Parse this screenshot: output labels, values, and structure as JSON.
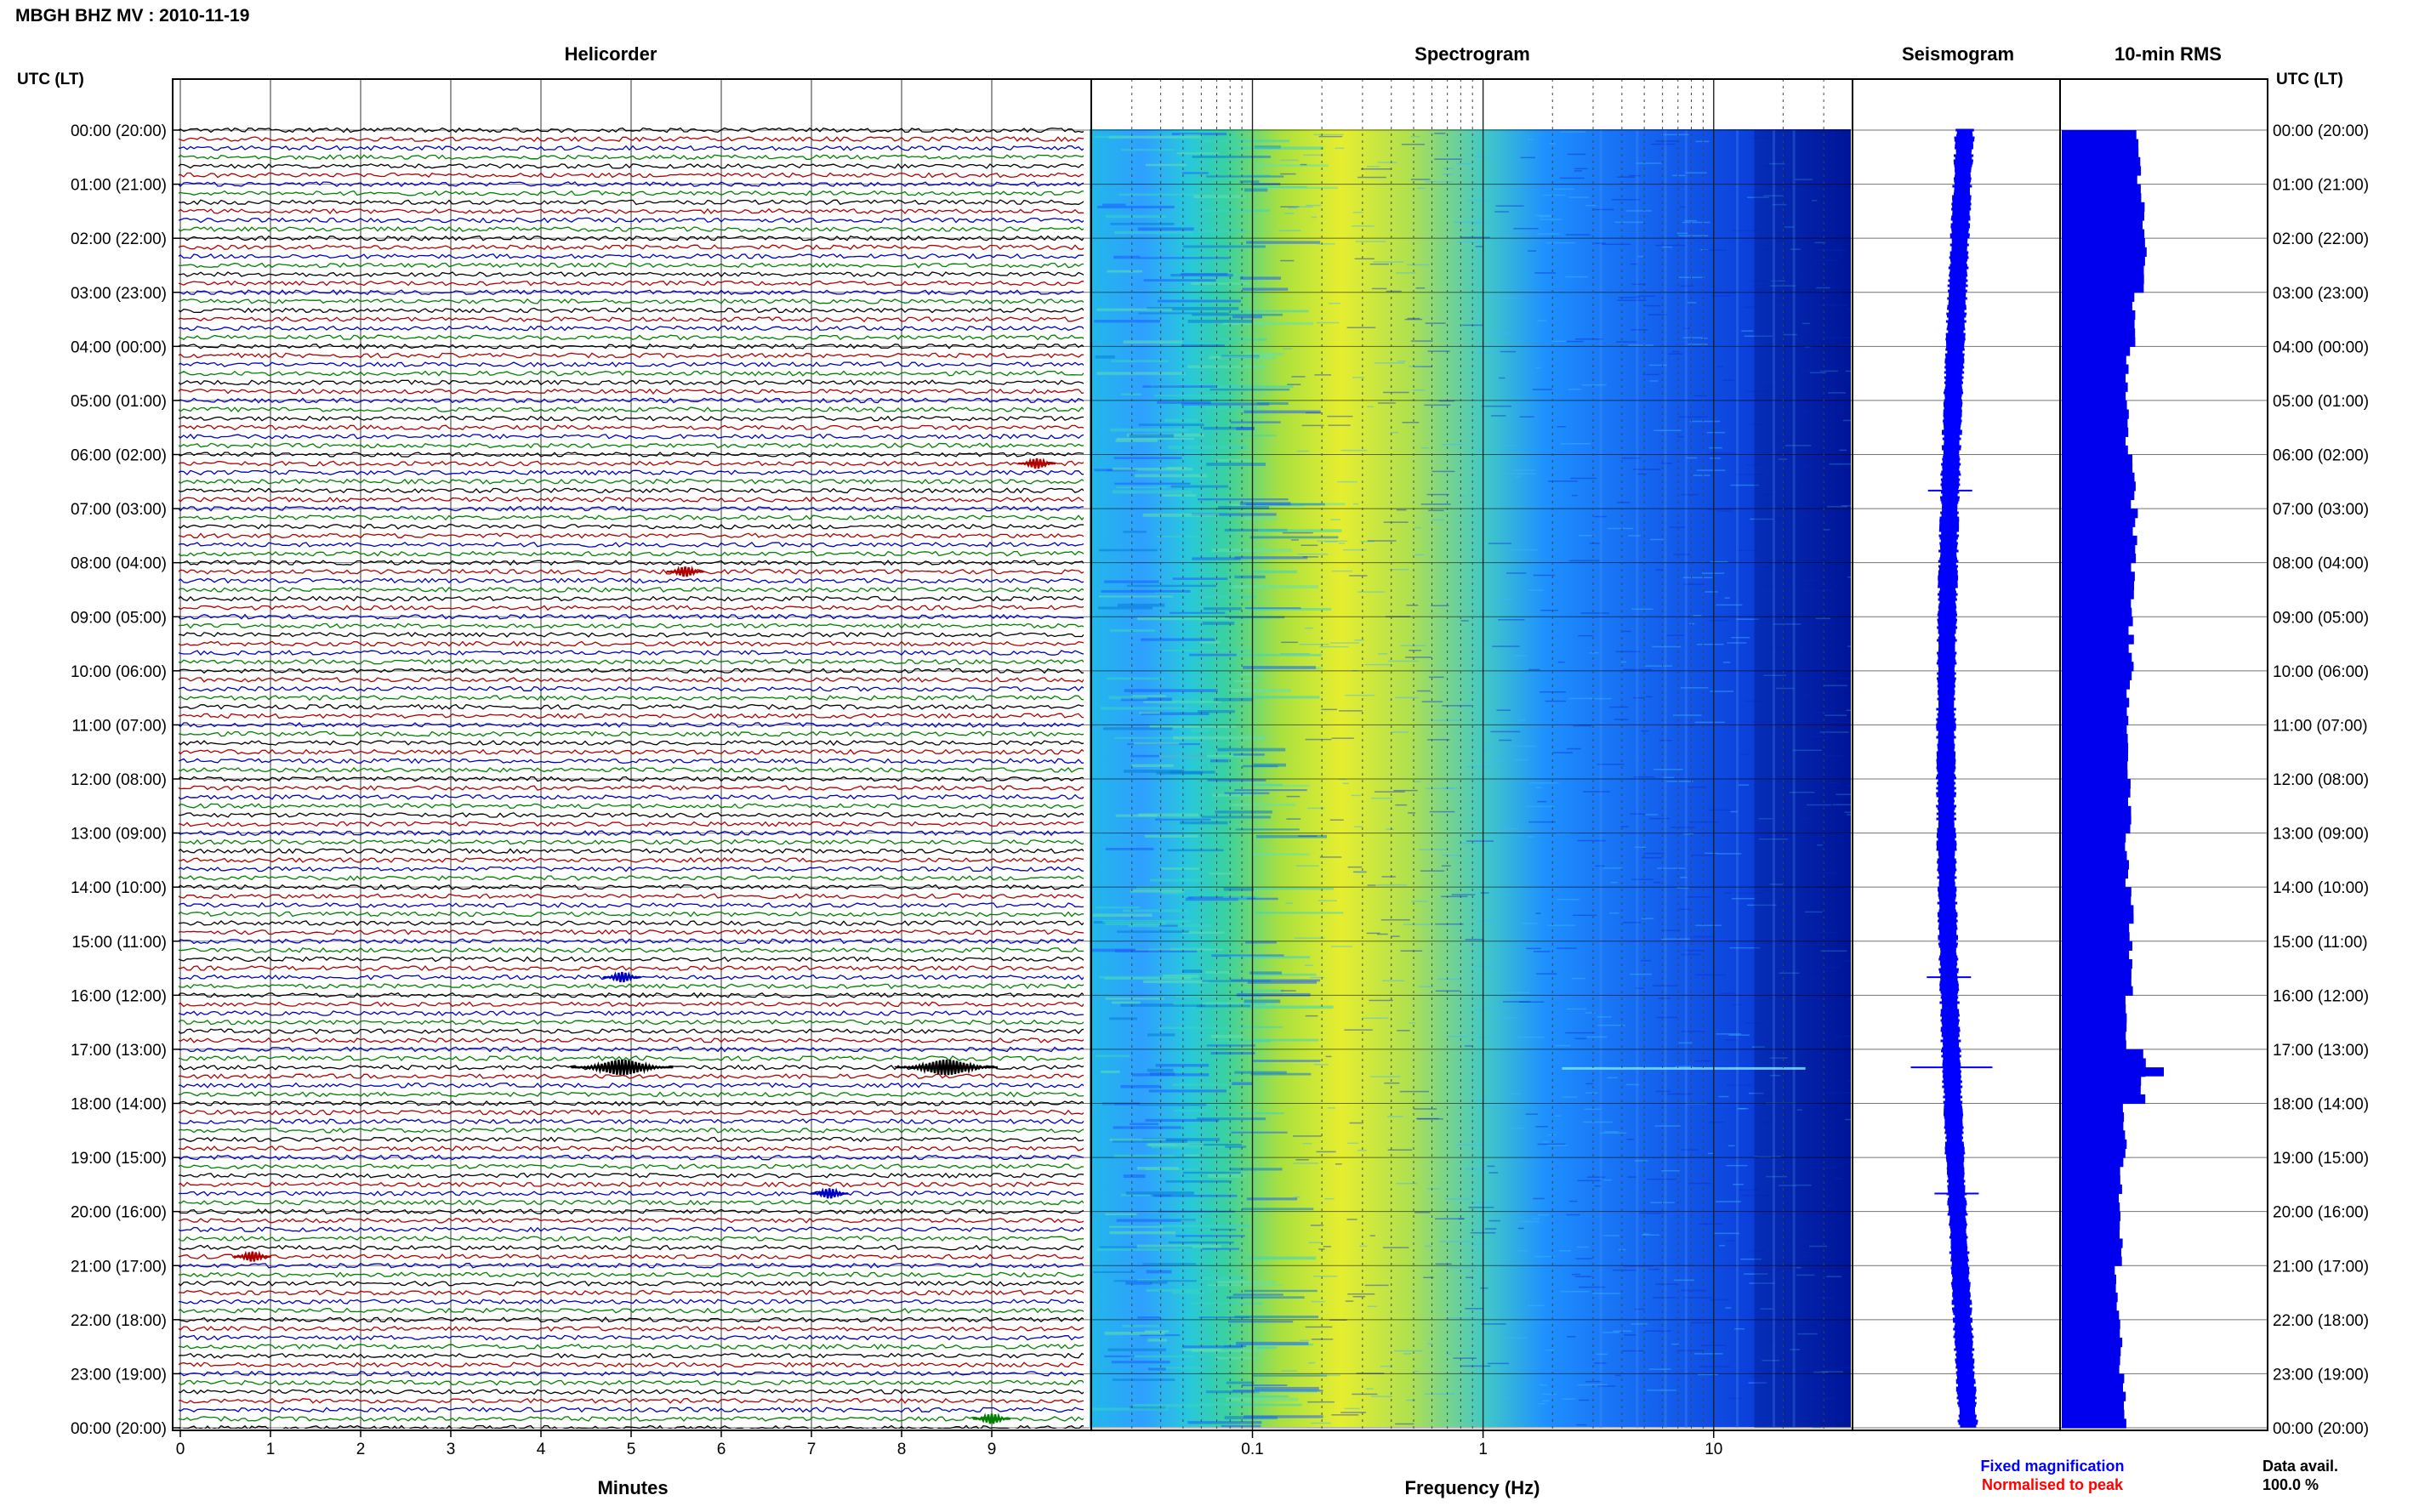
{
  "station_title": "MBGH BHZ MV : 2010-11-19",
  "utc_header_left": "UTC (LT)",
  "utc_header_right": "UTC (LT)",
  "panel_titles": {
    "helicorder": "Helicorder",
    "spectrogram": "Spectrogram",
    "seismogram": "Seismogram",
    "rms": "10-min RMS"
  },
  "time_labels": [
    "00:00 (20:00)",
    "01:00 (21:00)",
    "02:00 (22:00)",
    "03:00 (23:00)",
    "04:00 (00:00)",
    "05:00 (01:00)",
    "06:00 (02:00)",
    "07:00 (03:00)",
    "08:00 (04:00)",
    "09:00 (05:00)",
    "10:00 (06:00)",
    "11:00 (07:00)",
    "12:00 (08:00)",
    "13:00 (09:00)",
    "14:00 (10:00)",
    "15:00 (11:00)",
    "16:00 (12:00)",
    "17:00 (13:00)",
    "18:00 (14:00)",
    "19:00 (15:00)",
    "20:00 (16:00)",
    "21:00 (17:00)",
    "22:00 (18:00)",
    "23:00 (19:00)",
    "00:00 (20:00)"
  ],
  "x_axes": {
    "helicorder": {
      "label": "Minutes",
      "ticks": [
        "0",
        "1",
        "2",
        "3",
        "4",
        "5",
        "6",
        "7",
        "8",
        "9"
      ]
    },
    "spectrogram": {
      "label": "Frequency (Hz)",
      "ticks": [
        "0.1",
        "1",
        "10"
      ],
      "scale": "log"
    }
  },
  "legend": {
    "fixed": "Fixed magnification",
    "normalised": "Normalised to peak",
    "fixed_color": "#0000ff",
    "normalised_color": "#ff0000"
  },
  "data_availability": {
    "label": "Data avail.",
    "value": "100.0 %"
  },
  "colors": {
    "trace_cycle": [
      "#000000",
      "#b00000",
      "#0000c0",
      "#008000"
    ],
    "rms_fill": "#0000ee",
    "seismogram": "#0000ff"
  },
  "chart_data": [
    {
      "type": "line",
      "name": "helicorder",
      "xlabel": "Minutes",
      "xlim": [
        0,
        10
      ],
      "rows_per_hour": 6,
      "events": [
        {
          "time_utc": "06:10",
          "minute": 9.5
        },
        {
          "time_utc": "08:10",
          "minute": 5.6
        },
        {
          "time_utc": "15:40",
          "minute": 4.9
        },
        {
          "time_utc": "17:20",
          "minute": 4.9
        },
        {
          "time_utc": "17:20",
          "minute": 8.5
        },
        {
          "time_utc": "19:40",
          "minute": 7.2
        },
        {
          "time_utc": "20:50",
          "minute": 0.8
        },
        {
          "time_utc": "23:50",
          "minute": 9.0
        }
      ]
    },
    {
      "type": "heatmap",
      "name": "spectrogram",
      "xlabel": "Frequency (Hz)",
      "xscale": "log",
      "xlim": [
        0.02,
        40
      ],
      "peak_band_hz": [
        0.2,
        0.5
      ]
    },
    {
      "type": "line",
      "name": "seismogram",
      "events_utc": [
        "06:40",
        "15:40",
        "17:20",
        "19:40"
      ]
    },
    {
      "type": "bar",
      "name": "10-min RMS",
      "orientation": "horizontal",
      "hourly_relative_rms": [
        0.75,
        0.8,
        0.8,
        0.7,
        0.65,
        0.65,
        0.7,
        0.72,
        0.7,
        0.68,
        0.66,
        0.66,
        0.66,
        0.64,
        0.68,
        0.68,
        0.62,
        0.8,
        0.62,
        0.58,
        0.58,
        0.54,
        0.58,
        0.62
      ],
      "peak": {
        "time_utc": "17:20",
        "relative_rms": 1.0
      }
    }
  ]
}
